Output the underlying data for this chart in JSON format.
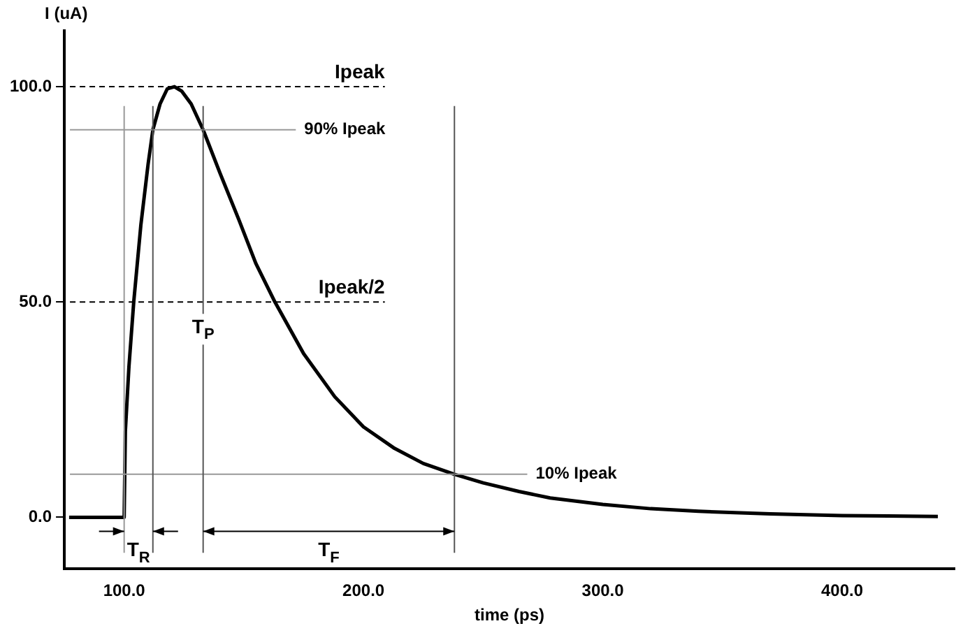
{
  "chart_data": {
    "type": "line",
    "xlabel": "time (ps)",
    "ylabel": "I (uA)",
    "series": [
      {
        "color": "#000000",
        "x": [
          77,
          100,
          100.5,
          102,
          104,
          107,
          110,
          112,
          115,
          118,
          121,
          124,
          128,
          133,
          140,
          148,
          155,
          163,
          175,
          188,
          200,
          213,
          225,
          238,
          250,
          265,
          278,
          300,
          320,
          340,
          370,
          400,
          440
        ],
        "values": [
          0,
          0,
          20,
          35,
          50,
          68,
          82,
          90,
          96,
          99.5,
          100,
          99,
          96,
          90,
          80,
          69,
          59,
          50,
          38,
          28,
          21,
          16,
          12.5,
          10,
          8,
          6,
          4.5,
          3,
          2,
          1.4,
          0.8,
          0.4,
          0.2
        ]
      }
    ],
    "xlim": [
      75,
      447
    ],
    "xticks": [
      {
        "value": 100,
        "label": "100.0"
      },
      {
        "value": 200,
        "label": "200.0"
      },
      {
        "value": 300,
        "label": "300.0"
      },
      {
        "value": 400,
        "label": "400.0"
      }
    ],
    "ylim": [
      -12,
      113
    ],
    "yticks": [
      {
        "value": 0,
        "label": "0.0"
      },
      {
        "value": 50,
        "label": "50.0"
      },
      {
        "value": 100,
        "label": "100.0"
      }
    ],
    "grid": false,
    "legend": false,
    "marker": "none",
    "line_style": "solid",
    "ref_lines": [
      {
        "axis": "y",
        "value": 100,
        "label": "Ipeak",
        "line_style": "dashed",
        "color": "#000000"
      },
      {
        "axis": "y",
        "value": 90,
        "label": "90% Ipeak",
        "line_style": "solid",
        "color": "#999999"
      },
      {
        "axis": "y",
        "value": 50,
        "label": "Ipeak/2",
        "line_style": "dashed",
        "color": "#000000"
      },
      {
        "axis": "y",
        "value": 10,
        "label": "10% Ipeak",
        "line_style": "solid",
        "color": "#999999"
      },
      {
        "axis": "x",
        "value": 100,
        "color": "#999999"
      },
      {
        "axis": "x",
        "value": 112,
        "color": "#555555"
      },
      {
        "axis": "x",
        "value": 133,
        "color": "#555555"
      },
      {
        "axis": "x",
        "value": 238,
        "color": "#555555"
      }
    ],
    "annotations": [
      "T$_{R}$",
      {
        "text": "T$_{P}$",
        "x": 133,
        "y": 44
      },
      "T$_{F}$"
    ]
  }
}
